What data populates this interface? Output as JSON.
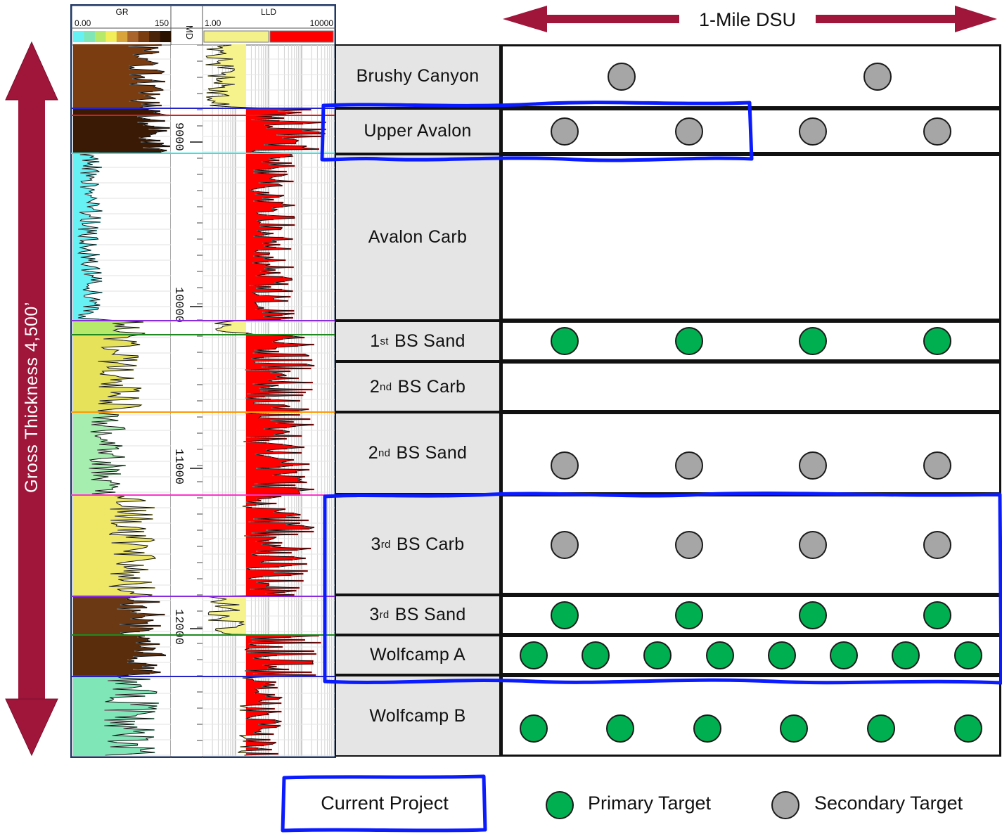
{
  "header": {
    "dsu_label": "1-Mile DSU",
    "gross_thickness_label": "Gross Thickness 4,500’"
  },
  "log": {
    "gr_track": {
      "title": "GR",
      "min": "0.00",
      "max": "150"
    },
    "md_track": {
      "title": "MD",
      "depths": [
        "9000",
        "10000",
        "11000",
        "12000"
      ]
    },
    "lld_track": {
      "title": "LLD",
      "min": "1.00",
      "max": "10000"
    }
  },
  "formations": [
    {
      "name": "Brushy Canyon",
      "sup": "",
      "rest": "",
      "wells": [
        {
          "type": "secondary",
          "pos": 0.24,
          "row": 0.5
        },
        {
          "type": "secondary",
          "pos": 0.755,
          "row": 0.5
        }
      ]
    },
    {
      "name": "Upper Avalon",
      "sup": "",
      "rest": "",
      "wells": [
        {
          "type": "secondary",
          "pos": 0.125,
          "row": 0.5
        },
        {
          "type": "secondary",
          "pos": 0.375,
          "row": 0.5
        },
        {
          "type": "secondary",
          "pos": 0.625,
          "row": 0.5
        },
        {
          "type": "secondary",
          "pos": 0.875,
          "row": 0.5
        }
      ]
    },
    {
      "name": "Avalon Carb",
      "sup": "",
      "rest": "",
      "wells": []
    },
    {
      "name": "1",
      "sup": "st",
      "rest": " BS Sand",
      "wells": [
        {
          "type": "primary",
          "pos": 0.125,
          "row": 0.5
        },
        {
          "type": "primary",
          "pos": 0.375,
          "row": 0.5
        },
        {
          "type": "primary",
          "pos": 0.625,
          "row": 0.5
        },
        {
          "type": "primary",
          "pos": 0.875,
          "row": 0.5
        }
      ]
    },
    {
      "name": "2",
      "sup": "nd",
      "rest": " BS Carb",
      "wells": []
    },
    {
      "name": "2",
      "sup": "nd",
      "rest": " BS Sand",
      "wells": [
        {
          "type": "secondary",
          "pos": 0.125,
          "row": 0.66
        },
        {
          "type": "secondary",
          "pos": 0.375,
          "row": 0.66
        },
        {
          "type": "secondary",
          "pos": 0.625,
          "row": 0.66
        },
        {
          "type": "secondary",
          "pos": 0.875,
          "row": 0.66
        }
      ]
    },
    {
      "name": "3",
      "sup": "rd",
      "rest": " BS Carb",
      "wells": [
        {
          "type": "secondary",
          "pos": 0.125,
          "row": 0.5
        },
        {
          "type": "secondary",
          "pos": 0.375,
          "row": 0.5
        },
        {
          "type": "secondary",
          "pos": 0.625,
          "row": 0.5
        },
        {
          "type": "secondary",
          "pos": 0.875,
          "row": 0.5
        }
      ]
    },
    {
      "name": "3",
      "sup": "rd",
      "rest": " BS Sand",
      "wells": [
        {
          "type": "primary",
          "pos": 0.125,
          "row": 0.5
        },
        {
          "type": "primary",
          "pos": 0.375,
          "row": 0.5
        },
        {
          "type": "primary",
          "pos": 0.625,
          "row": 0.5
        },
        {
          "type": "primary",
          "pos": 0.875,
          "row": 0.5
        }
      ]
    },
    {
      "name": "Wolfcamp A",
      "sup": "",
      "rest": "",
      "wells": [
        {
          "type": "primary",
          "pos": 0.062,
          "row": 0.5
        },
        {
          "type": "primary",
          "pos": 0.187,
          "row": 0.5
        },
        {
          "type": "primary",
          "pos": 0.312,
          "row": 0.5
        },
        {
          "type": "primary",
          "pos": 0.437,
          "row": 0.5
        },
        {
          "type": "primary",
          "pos": 0.562,
          "row": 0.5
        },
        {
          "type": "primary",
          "pos": 0.687,
          "row": 0.5
        },
        {
          "type": "primary",
          "pos": 0.812,
          "row": 0.5
        },
        {
          "type": "primary",
          "pos": 0.937,
          "row": 0.5
        }
      ]
    },
    {
      "name": "Wolfcamp B",
      "sup": "",
      "rest": "",
      "wells": [
        {
          "type": "primary",
          "pos": 0.062,
          "row": 0.66
        },
        {
          "type": "primary",
          "pos": 0.237,
          "row": 0.66
        },
        {
          "type": "primary",
          "pos": 0.412,
          "row": 0.66
        },
        {
          "type": "primary",
          "pos": 0.587,
          "row": 0.66
        },
        {
          "type": "primary",
          "pos": 0.762,
          "row": 0.66
        },
        {
          "type": "primary",
          "pos": 0.937,
          "row": 0.66
        }
      ]
    }
  ],
  "legend": {
    "current_project": "Current Project",
    "primary_target": "Primary Target",
    "secondary_target": "Secondary Target"
  },
  "colors": {
    "arrow": "#a0163b",
    "project_outline": "#0a1bff",
    "primary": "#00b050",
    "secondary": "#a6a6a6",
    "cell_gray": "#e5e5e5",
    "lld_fill": "#ff0000",
    "gr_clean": "#66f2f5",
    "gr_sand": "#f2ee5a",
    "gr_shale": "#7a3d10"
  }
}
